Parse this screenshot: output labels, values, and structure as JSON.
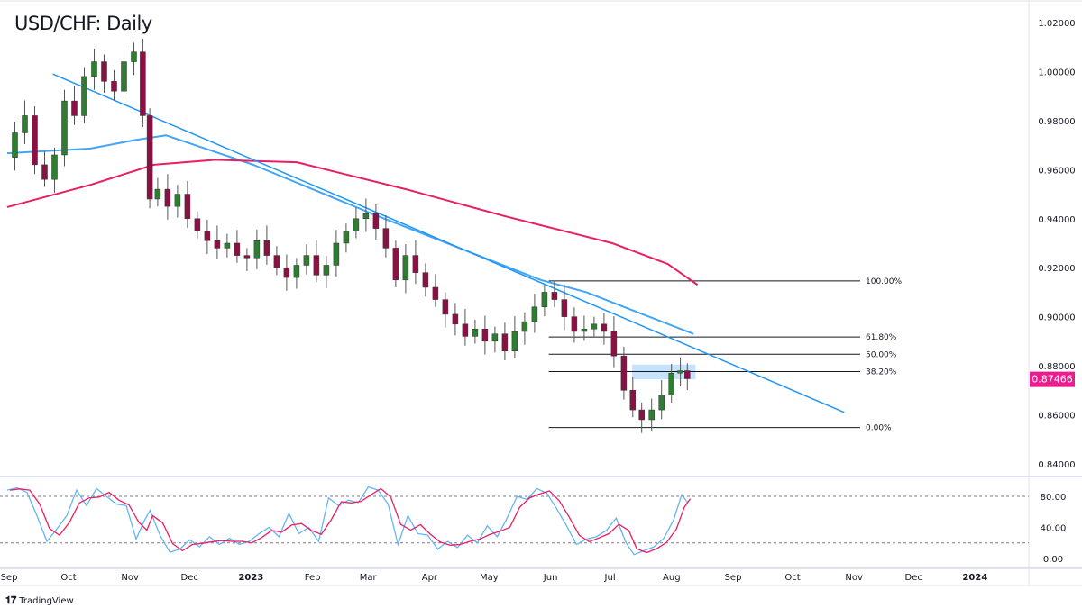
{
  "title": "USD/CHF: Daily",
  "brand": {
    "logo": "TV",
    "name": "TradingView"
  },
  "colors": {
    "up": "#2e7d32",
    "down": "#8b1145",
    "ma_fast": "#42a5f5",
    "ma_slow": "#e91e63",
    "trendline": "#2196f3",
    "price_tag": "#e91e8c",
    "stoch_k": "#64b5f6",
    "stoch_d": "#e91e63",
    "box": "#bbdefb"
  },
  "chart_data": [
    {
      "type": "candlestick",
      "title": "USD/CHF: Daily",
      "ylim": [
        0.83,
        1.025
      ],
      "y_ticks": [
        "1.02000",
        "1.00000",
        "0.98000",
        "0.96000",
        "0.94000",
        "0.92000",
        "0.90000",
        "0.88000",
        "0.86000",
        "0.84000"
      ],
      "x_ticks": [
        {
          "label": "Sep",
          "date": "2022-09-01"
        },
        {
          "label": "Oct",
          "date": "2022-10-01"
        },
        {
          "label": "Nov",
          "date": "2022-11-01"
        },
        {
          "label": "Dec",
          "date": "2022-12-01"
        },
        {
          "label": "2023",
          "date": "2023-01-01",
          "bold": true
        },
        {
          "label": "Feb",
          "date": "2023-02-01"
        },
        {
          "label": "Mar",
          "date": "2023-03-01"
        },
        {
          "label": "Apr",
          "date": "2023-04-01"
        },
        {
          "label": "May",
          "date": "2023-05-01"
        },
        {
          "label": "Jun",
          "date": "2023-06-01"
        },
        {
          "label": "Jul",
          "date": "2023-07-01"
        },
        {
          "label": "Aug",
          "date": "2023-08-01"
        },
        {
          "label": "Sep",
          "date": "2023-09-01"
        },
        {
          "label": "Oct",
          "date": "2023-10-01"
        },
        {
          "label": "Nov",
          "date": "2023-11-01"
        },
        {
          "label": "Dec",
          "date": "2023-12-01"
        },
        {
          "label": "2024",
          "date": "2024-01-01",
          "bold": true
        }
      ],
      "last_price": "0.87466",
      "last_price_value": 0.87466,
      "closes": [
        [
          "2022-09-01",
          0.965
        ],
        [
          "2022-09-06",
          0.975
        ],
        [
          "2022-09-11",
          0.982
        ],
        [
          "2022-09-16",
          0.962
        ],
        [
          "2022-09-21",
          0.956
        ],
        [
          "2022-09-26",
          0.966
        ],
        [
          "2022-10-01",
          0.988
        ],
        [
          "2022-10-06",
          0.982
        ],
        [
          "2022-10-11",
          0.998
        ],
        [
          "2022-10-16",
          1.004
        ],
        [
          "2022-10-21",
          0.996
        ],
        [
          "2022-10-26",
          0.992
        ],
        [
          "2022-10-31",
          1.004
        ],
        [
          "2022-11-05",
          1.008
        ],
        [
          "2022-11-09",
          0.982
        ],
        [
          "2022-11-12",
          0.948
        ],
        [
          "2022-11-17",
          0.952
        ],
        [
          "2022-11-22",
          0.945
        ],
        [
          "2022-11-27",
          0.95
        ],
        [
          "2022-12-02",
          0.94
        ],
        [
          "2022-12-07",
          0.935
        ],
        [
          "2022-12-12",
          0.931
        ],
        [
          "2022-12-17",
          0.928
        ],
        [
          "2022-12-22",
          0.93
        ],
        [
          "2022-12-27",
          0.925
        ],
        [
          "2023-01-01",
          0.924
        ],
        [
          "2023-01-06",
          0.931
        ],
        [
          "2023-01-11",
          0.925
        ],
        [
          "2023-01-16",
          0.92
        ],
        [
          "2023-01-21",
          0.916
        ],
        [
          "2023-01-26",
          0.921
        ],
        [
          "2023-01-31",
          0.925
        ],
        [
          "2023-02-05",
          0.917
        ],
        [
          "2023-02-10",
          0.921
        ],
        [
          "2023-02-15",
          0.93
        ],
        [
          "2023-02-20",
          0.935
        ],
        [
          "2023-02-25",
          0.94
        ],
        [
          "2023-03-02",
          0.942
        ],
        [
          "2023-03-07",
          0.936
        ],
        [
          "2023-03-12",
          0.928
        ],
        [
          "2023-03-17",
          0.915
        ],
        [
          "2023-03-22",
          0.925
        ],
        [
          "2023-03-27",
          0.918
        ],
        [
          "2023-04-01",
          0.912
        ],
        [
          "2023-04-06",
          0.907
        ],
        [
          "2023-04-11",
          0.901
        ],
        [
          "2023-04-16",
          0.897
        ],
        [
          "2023-04-21",
          0.892
        ],
        [
          "2023-04-26",
          0.895
        ],
        [
          "2023-05-01",
          0.89
        ],
        [
          "2023-05-06",
          0.893
        ],
        [
          "2023-05-11",
          0.886
        ],
        [
          "2023-05-16",
          0.894
        ],
        [
          "2023-05-21",
          0.898
        ],
        [
          "2023-05-26",
          0.904
        ],
        [
          "2023-05-31",
          0.91
        ],
        [
          "2023-06-05",
          0.907
        ],
        [
          "2023-06-10",
          0.9
        ],
        [
          "2023-06-15",
          0.894
        ],
        [
          "2023-06-20",
          0.895
        ],
        [
          "2023-06-25",
          0.897
        ],
        [
          "2023-06-30",
          0.894
        ],
        [
          "2023-07-05",
          0.884
        ],
        [
          "2023-07-10",
          0.87
        ],
        [
          "2023-07-14",
          0.862
        ],
        [
          "2023-07-19",
          0.858
        ],
        [
          "2023-07-24",
          0.862
        ],
        [
          "2023-07-29",
          0.868
        ],
        [
          "2023-08-03",
          0.877
        ],
        [
          "2023-08-07",
          0.878
        ],
        [
          "2023-08-10",
          0.8747
        ]
      ],
      "moving_averages": [
        {
          "color": "ma_fast",
          "points": [
            [
              "2022-09-01",
              0.9667
            ],
            [
              "2022-10-13",
              0.9686
            ],
            [
              "2022-11-04",
              0.972
            ],
            [
              "2022-11-20",
              0.974
            ],
            [
              "2023-01-03",
              0.962
            ],
            [
              "2023-03-07",
              0.941
            ],
            [
              "2023-05-28",
              0.915
            ],
            [
              "2023-06-20",
              0.91
            ],
            [
              "2023-07-12",
              0.903
            ],
            [
              "2023-08-13",
              0.893
            ]
          ]
        },
        {
          "color": "ma_slow",
          "points": [
            [
              "2022-09-01",
              0.9447
            ],
            [
              "2022-10-13",
              0.9538
            ],
            [
              "2022-11-14",
              0.962
            ],
            [
              "2022-12-15",
              0.964
            ],
            [
              "2023-01-25",
              0.963
            ],
            [
              "2023-03-21",
              0.952
            ],
            [
              "2023-05-10",
              0.941
            ],
            [
              "2023-07-03",
              0.93
            ],
            [
              "2023-07-31",
              0.9215
            ],
            [
              "2023-08-15",
              0.913
            ]
          ]
        }
      ],
      "trendline": [
        [
          "2022-09-24",
          0.999
        ],
        [
          "2023-10-28",
          0.861
        ]
      ],
      "fibonacci": {
        "start": "2023-06-01",
        "end": "2023-11-05",
        "low": 0.8548,
        "high": 0.9146,
        "levels": [
          {
            "ratio": 1.0,
            "label": "100.00%"
          },
          {
            "ratio": 0.618,
            "label": "61.80%"
          },
          {
            "ratio": 0.5,
            "label": "50.00%"
          },
          {
            "ratio": 0.382,
            "label": "38.20%"
          },
          {
            "ratio": 0.0,
            "label": "0.00%"
          }
        ]
      },
      "zone": {
        "from": "2023-07-13",
        "to": "2023-08-14",
        "top": 0.8805,
        "bottom": 0.8745
      }
    },
    {
      "type": "line",
      "ylim": [
        0,
        100
      ],
      "y_ticks": [
        "80.00",
        "40.00",
        "0.00"
      ],
      "levels": [
        80,
        20
      ],
      "k": [
        [
          "2022-09-01",
          88
        ],
        [
          "2022-09-06",
          91
        ],
        [
          "2022-09-11",
          85
        ],
        [
          "2022-09-16",
          55
        ],
        [
          "2022-09-21",
          22
        ],
        [
          "2022-09-26",
          38
        ],
        [
          "2022-10-01",
          55
        ],
        [
          "2022-10-06",
          88
        ],
        [
          "2022-10-11",
          68
        ],
        [
          "2022-10-16",
          90
        ],
        [
          "2022-10-21",
          80
        ],
        [
          "2022-10-26",
          70
        ],
        [
          "2022-10-31",
          68
        ],
        [
          "2022-11-05",
          25
        ],
        [
          "2022-11-09",
          48
        ],
        [
          "2022-11-12",
          62
        ],
        [
          "2022-11-17",
          30
        ],
        [
          "2022-11-22",
          8
        ],
        [
          "2022-11-27",
          12
        ],
        [
          "2022-12-02",
          24
        ],
        [
          "2022-12-07",
          15
        ],
        [
          "2022-12-12",
          28
        ],
        [
          "2022-12-17",
          18
        ],
        [
          "2022-12-22",
          26
        ],
        [
          "2022-12-27",
          18
        ],
        [
          "2023-01-01",
          22
        ],
        [
          "2023-01-06",
          32
        ],
        [
          "2023-01-11",
          40
        ],
        [
          "2023-01-16",
          28
        ],
        [
          "2023-01-21",
          58
        ],
        [
          "2023-01-26",
          32
        ],
        [
          "2023-01-31",
          40
        ],
        [
          "2023-02-05",
          22
        ],
        [
          "2023-02-10",
          78
        ],
        [
          "2023-02-15",
          68
        ],
        [
          "2023-02-20",
          75
        ],
        [
          "2023-02-25",
          72
        ],
        [
          "2023-03-02",
          92
        ],
        [
          "2023-03-07",
          88
        ],
        [
          "2023-03-12",
          70
        ],
        [
          "2023-03-17",
          18
        ],
        [
          "2023-03-22",
          55
        ],
        [
          "2023-03-27",
          32
        ],
        [
          "2023-04-01",
          30
        ],
        [
          "2023-04-06",
          12
        ],
        [
          "2023-04-11",
          22
        ],
        [
          "2023-04-16",
          14
        ],
        [
          "2023-04-21",
          30
        ],
        [
          "2023-04-26",
          20
        ],
        [
          "2023-05-01",
          42
        ],
        [
          "2023-05-06",
          28
        ],
        [
          "2023-05-11",
          52
        ],
        [
          "2023-05-16",
          80
        ],
        [
          "2023-05-21",
          76
        ],
        [
          "2023-05-26",
          90
        ],
        [
          "2023-05-31",
          84
        ],
        [
          "2023-06-05",
          64
        ],
        [
          "2023-06-10",
          42
        ],
        [
          "2023-06-15",
          18
        ],
        [
          "2023-06-20",
          25
        ],
        [
          "2023-06-25",
          28
        ],
        [
          "2023-06-30",
          36
        ],
        [
          "2023-07-05",
          52
        ],
        [
          "2023-07-10",
          20
        ],
        [
          "2023-07-14",
          5
        ],
        [
          "2023-07-19",
          10
        ],
        [
          "2023-07-24",
          15
        ],
        [
          "2023-07-29",
          26
        ],
        [
          "2023-08-03",
          50
        ],
        [
          "2023-08-07",
          82
        ],
        [
          "2023-08-10",
          72
        ]
      ]
    }
  ]
}
